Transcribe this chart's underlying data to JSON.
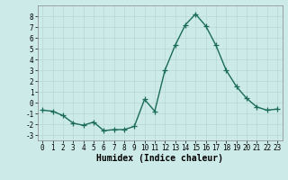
{
  "x": [
    0,
    1,
    2,
    3,
    4,
    5,
    6,
    7,
    8,
    9,
    10,
    11,
    12,
    13,
    14,
    15,
    16,
    17,
    18,
    19,
    20,
    21,
    22,
    23
  ],
  "y": [
    -0.7,
    -0.8,
    -1.2,
    -1.9,
    -2.1,
    -1.8,
    -2.6,
    -2.5,
    -2.5,
    -2.2,
    0.3,
    -0.8,
    3.0,
    5.3,
    7.2,
    8.2,
    7.1,
    5.3,
    3.0,
    1.5,
    0.4,
    -0.4,
    -0.7,
    -0.6
  ],
  "line_color": "#1a6b5a",
  "marker": "+",
  "marker_size": 4,
  "bg_color": "#cceae7",
  "grid_color": "#b8d8d5",
  "xlabel": "Humidex (Indice chaleur)",
  "ylim": [
    -3.5,
    9.0
  ],
  "xlim": [
    -0.5,
    23.5
  ],
  "yticks": [
    -3,
    -2,
    -1,
    0,
    1,
    2,
    3,
    4,
    5,
    6,
    7,
    8
  ],
  "xtick_labels": [
    "0",
    "1",
    "2",
    "3",
    "4",
    "5",
    "6",
    "7",
    "8",
    "9",
    "10",
    "11",
    "12",
    "13",
    "14",
    "15",
    "16",
    "17",
    "18",
    "19",
    "20",
    "21",
    "22",
    "23"
  ],
  "tick_fontsize": 5.5,
  "xlabel_fontsize": 7,
  "line_width": 1.0
}
